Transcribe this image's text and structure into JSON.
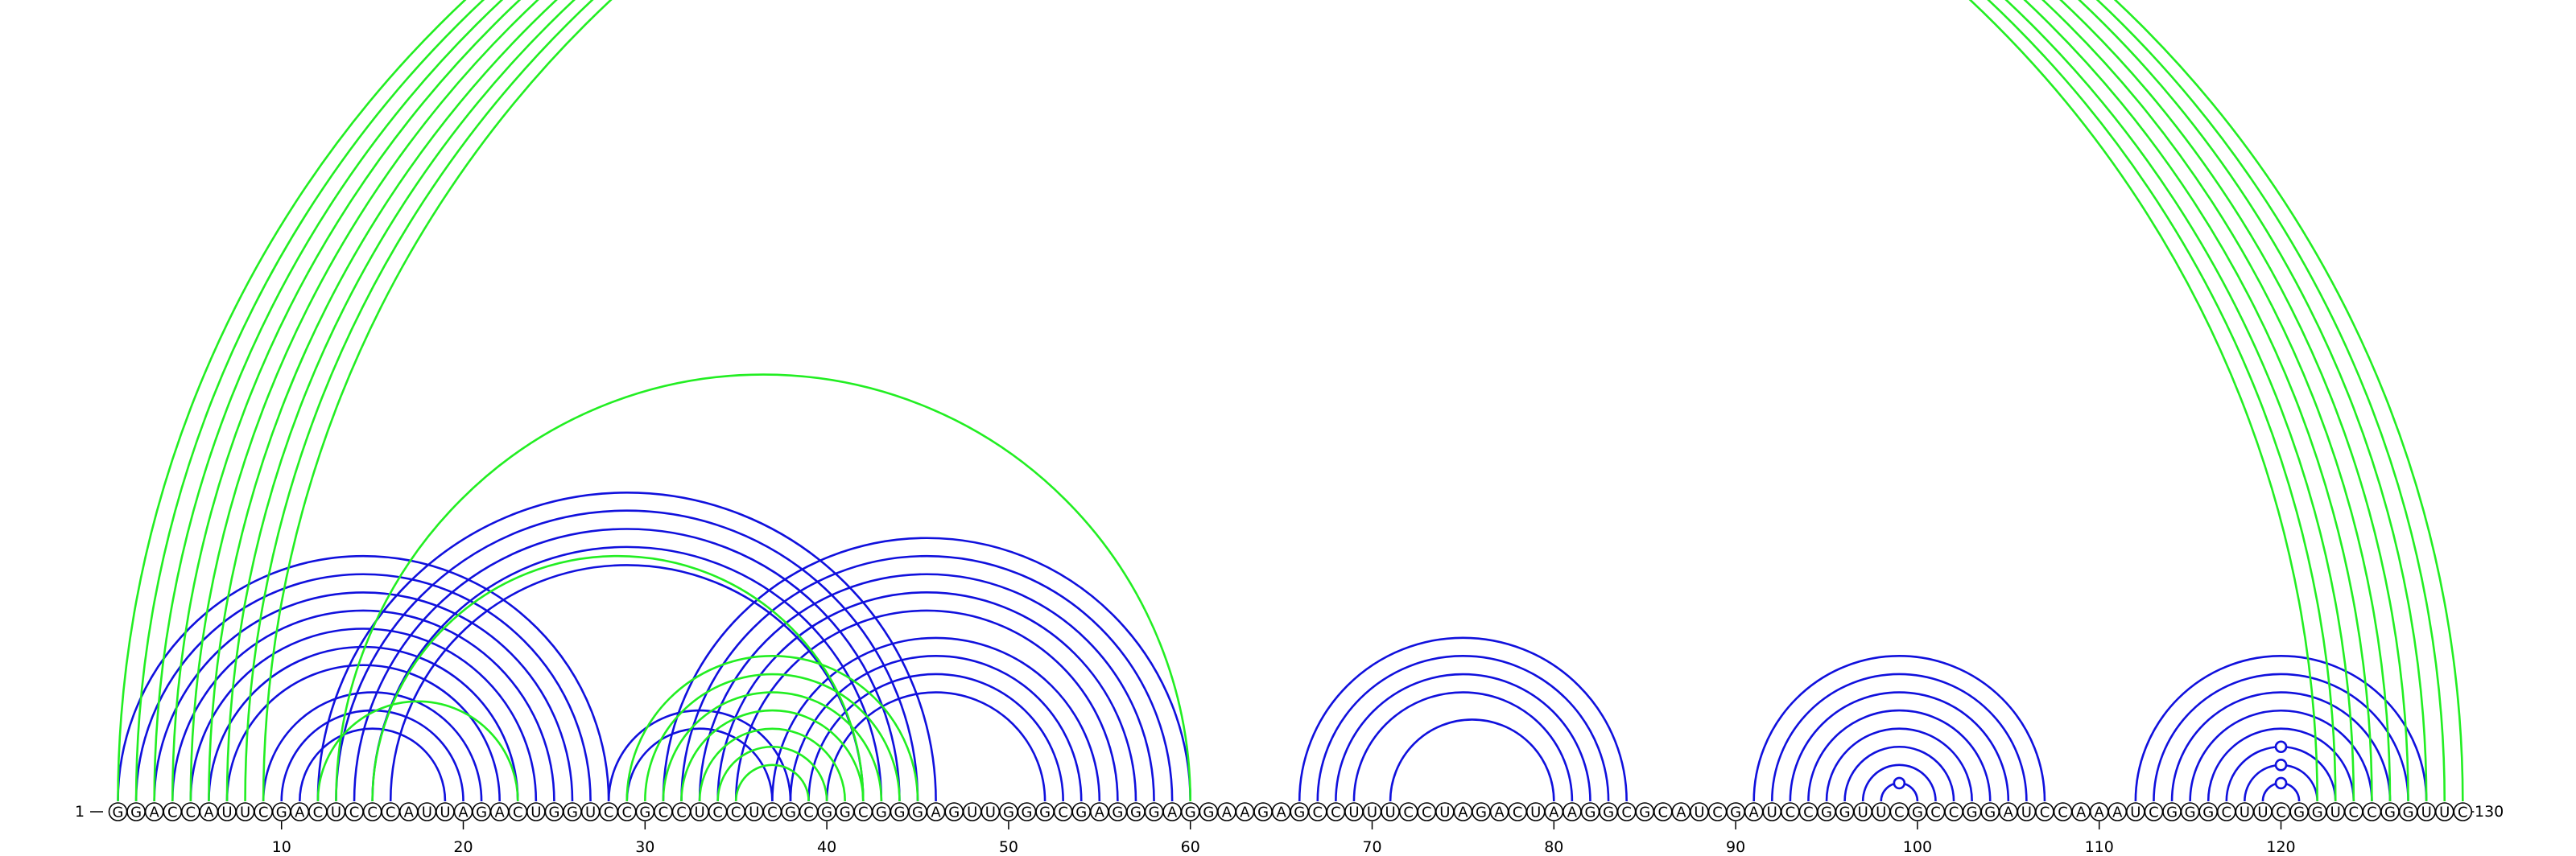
{
  "sequence": "GGACCAUUCGACUCCCAUUAGACUGGUCCGCCUCCUCGCGGCGGGAGUUGGGCGAGGGAGGAAGAGCCUUUCCUAGACUAAGGCGCAUCGAUCCGGUUCGCCGGAUCCAAAUCGGGCUUCGGUCCGGUUC",
  "ends": {
    "start_label": "1",
    "end_label": "130"
  },
  "ticks": [
    "10",
    "20",
    "30",
    "40",
    "50",
    "60",
    "70",
    "80",
    "90",
    "100",
    "110",
    "120"
  ],
  "colors": {
    "paired_blue": "#1010dd",
    "paired_green": "#22ee22",
    "nucleotide_outline": "#000000"
  },
  "pairs": {
    "blue": [
      [
        1,
        28
      ],
      [
        2,
        27
      ],
      [
        3,
        26
      ],
      [
        4,
        25
      ],
      [
        5,
        24
      ],
      [
        6,
        23
      ],
      [
        7,
        22
      ],
      [
        9,
        21
      ],
      [
        10,
        20
      ],
      [
        11,
        19
      ],
      [
        12,
        46
      ],
      [
        13,
        45
      ],
      [
        14,
        44
      ],
      [
        15,
        43
      ],
      [
        16,
        42
      ],
      [
        28,
        38
      ],
      [
        29,
        37
      ],
      [
        31,
        60
      ],
      [
        32,
        59
      ],
      [
        33,
        58
      ],
      [
        34,
        57
      ],
      [
        35,
        56
      ],
      [
        37,
        55
      ],
      [
        38,
        54
      ],
      [
        39,
        53
      ],
      [
        40,
        52
      ],
      [
        66,
        84
      ],
      [
        67,
        83
      ],
      [
        68,
        82
      ],
      [
        69,
        81
      ],
      [
        71,
        80
      ],
      [
        91,
        107
      ],
      [
        92,
        106
      ],
      [
        93,
        105
      ],
      [
        94,
        104
      ],
      [
        95,
        103
      ],
      [
        96,
        102
      ],
      [
        97,
        101
      ],
      [
        98,
        100
      ],
      [
        112,
        128
      ],
      [
        113,
        127
      ],
      [
        114,
        126
      ],
      [
        115,
        125
      ],
      [
        116,
        124
      ],
      [
        117,
        123
      ],
      [
        118,
        122
      ],
      [
        119,
        121
      ]
    ],
    "green": [
      [
        1,
        122
      ],
      [
        2,
        123
      ],
      [
        3,
        124
      ],
      [
        4,
        125
      ],
      [
        5,
        126
      ],
      [
        6,
        127
      ],
      [
        7,
        128
      ],
      [
        8,
        129
      ],
      [
        9,
        130
      ],
      [
        12,
        23
      ],
      [
        13,
        60
      ],
      [
        15,
        42
      ],
      [
        29,
        45
      ],
      [
        30,
        44
      ],
      [
        31,
        43
      ],
      [
        32,
        42
      ],
      [
        33,
        41
      ],
      [
        34,
        40
      ],
      [
        35,
        39
      ]
    ],
    "markers": [
      {
        "color": "green",
        "pair": [
          8,
          129
        ]
      },
      {
        "color": "blue",
        "pair": [
          98,
          100
        ]
      },
      {
        "color": "blue",
        "pair": [
          119,
          121
        ]
      },
      {
        "color": "blue",
        "pair": [
          118,
          122
        ]
      },
      {
        "color": "blue",
        "pair": [
          117,
          123
        ]
      }
    ]
  }
}
